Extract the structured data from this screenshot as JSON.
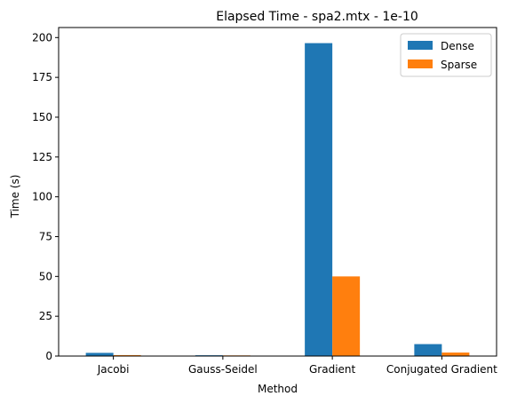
{
  "chart_data": {
    "type": "bar",
    "title": "Elapsed Time - spa2.mtx - 1e-10",
    "xlabel": "Method",
    "ylabel": "Time (s)",
    "categories": [
      "Jacobi",
      "Gauss-Seidel",
      "Gradient",
      "Conjugated Gradient"
    ],
    "series": [
      {
        "name": "Dense",
        "color": "#1f77b4",
        "values": [
          2.0,
          0.5,
          196.5,
          7.5
        ]
      },
      {
        "name": "Sparse",
        "color": "#ff7f0e",
        "values": [
          0.6,
          0.4,
          50.0,
          2.2
        ]
      }
    ],
    "ylim": [
      0,
      206.3
    ],
    "yticks": [
      0,
      25,
      50,
      75,
      100,
      125,
      150,
      175,
      200
    ],
    "legend": "top-right",
    "grid": false
  }
}
